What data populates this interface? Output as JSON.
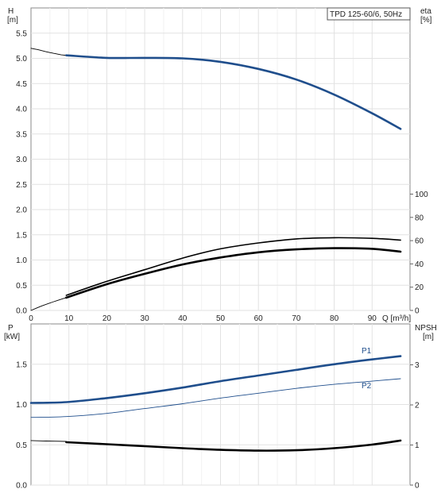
{
  "chart_data": [
    {
      "type": "line",
      "title": "TPD 125-60/6, 50Hz",
      "xlabel": "Q [m³/h]",
      "x_ticks": [
        "0",
        "10",
        "20",
        "30",
        "40",
        "50",
        "60",
        "70",
        "80",
        "90"
      ],
      "xlim": [
        0,
        100
      ],
      "left_axis": {
        "label": "H",
        "unit": "[m]",
        "ylim": [
          0,
          6.0
        ],
        "ticks": [
          "0.0",
          "0.5",
          "1.0",
          "1.5",
          "2.0",
          "2.5",
          "3.0",
          "3.5",
          "4.0",
          "4.5",
          "5.0",
          "5.5"
        ]
      },
      "right_axis": {
        "label": "eta",
        "unit": "[%]",
        "ylim": [
          0,
          100
        ],
        "ticks": [
          "0",
          "20",
          "40",
          "60",
          "80",
          "100"
        ]
      },
      "series": [
        {
          "axis": "left",
          "style": "thin",
          "color": "#000000",
          "x": [
            0,
            2,
            4,
            6,
            8,
            9.3
          ],
          "y": [
            5.2,
            5.17,
            5.13,
            5.1,
            5.07,
            5.06
          ]
        },
        {
          "axis": "left",
          "style": "bold",
          "color": "#1f4e8c",
          "x": [
            9.3,
            20,
            30,
            40,
            50,
            60,
            70,
            80,
            90,
            97.5
          ],
          "y": [
            5.06,
            5.01,
            5.01,
            5.0,
            4.93,
            4.79,
            4.58,
            4.28,
            3.91,
            3.6
          ]
        },
        {
          "axis": "right",
          "style": "thin",
          "color": "#000000",
          "x": [
            0,
            3,
            6,
            9.3
          ],
          "y": [
            0,
            4,
            7.5,
            11
          ]
        },
        {
          "axis": "right",
          "style": "medium",
          "color": "#000000",
          "x": [
            9.3,
            20,
            30,
            40,
            50,
            60,
            70,
            80,
            90,
            97.5
          ],
          "y": [
            13,
            25,
            35,
            45,
            53,
            58,
            61.5,
            62.5,
            62,
            60.5
          ]
        },
        {
          "axis": "right",
          "style": "bold",
          "color": "#000000",
          "x": [
            9.3,
            20,
            30,
            40,
            50,
            60,
            70,
            80,
            90,
            97.5
          ],
          "y": [
            11,
            22.5,
            31.5,
            39.5,
            45.5,
            50,
            52.5,
            53.5,
            53,
            50.5
          ]
        }
      ]
    },
    {
      "type": "line",
      "xlim": [
        0,
        100
      ],
      "left_axis": {
        "label": "P",
        "unit": "[kW]",
        "ylim": [
          0,
          2.0
        ],
        "ticks": [
          "0.0",
          "0.5",
          "1.0",
          "1.5"
        ]
      },
      "right_axis": {
        "label": "NPSH",
        "unit": "[m]",
        "ylim": [
          0,
          4.0
        ],
        "ticks": [
          "0",
          "1",
          "2",
          "3"
        ]
      },
      "series": [
        {
          "name": "P1",
          "axis": "left",
          "style": "bold",
          "color": "#1f4e8c",
          "x": [
            0,
            9.3,
            20,
            30,
            40,
            50,
            60,
            70,
            80,
            90,
            97.5
          ],
          "y": [
            1.02,
            1.03,
            1.08,
            1.14,
            1.21,
            1.29,
            1.36,
            1.43,
            1.5,
            1.56,
            1.6
          ]
        },
        {
          "name": "P2",
          "axis": "left",
          "style": "thin",
          "color": "#1f4e8c",
          "x": [
            0,
            9.3,
            20,
            30,
            40,
            50,
            60,
            70,
            80,
            90,
            97.5
          ],
          "y": [
            0.84,
            0.85,
            0.89,
            0.95,
            1.01,
            1.08,
            1.14,
            1.2,
            1.25,
            1.29,
            1.32
          ]
        },
        {
          "axis": "right",
          "style": "thin",
          "color": "#000000",
          "x": [
            0,
            4,
            9.3
          ],
          "y": [
            1.11,
            1.1,
            1.09
          ]
        },
        {
          "axis": "right",
          "style": "bold",
          "color": "#000000",
          "x": [
            9.3,
            20,
            30,
            40,
            50,
            60,
            70,
            80,
            90,
            97.5
          ],
          "y": [
            1.07,
            1.02,
            0.97,
            0.92,
            0.88,
            0.86,
            0.87,
            0.92,
            1.01,
            1.11
          ]
        }
      ]
    }
  ]
}
